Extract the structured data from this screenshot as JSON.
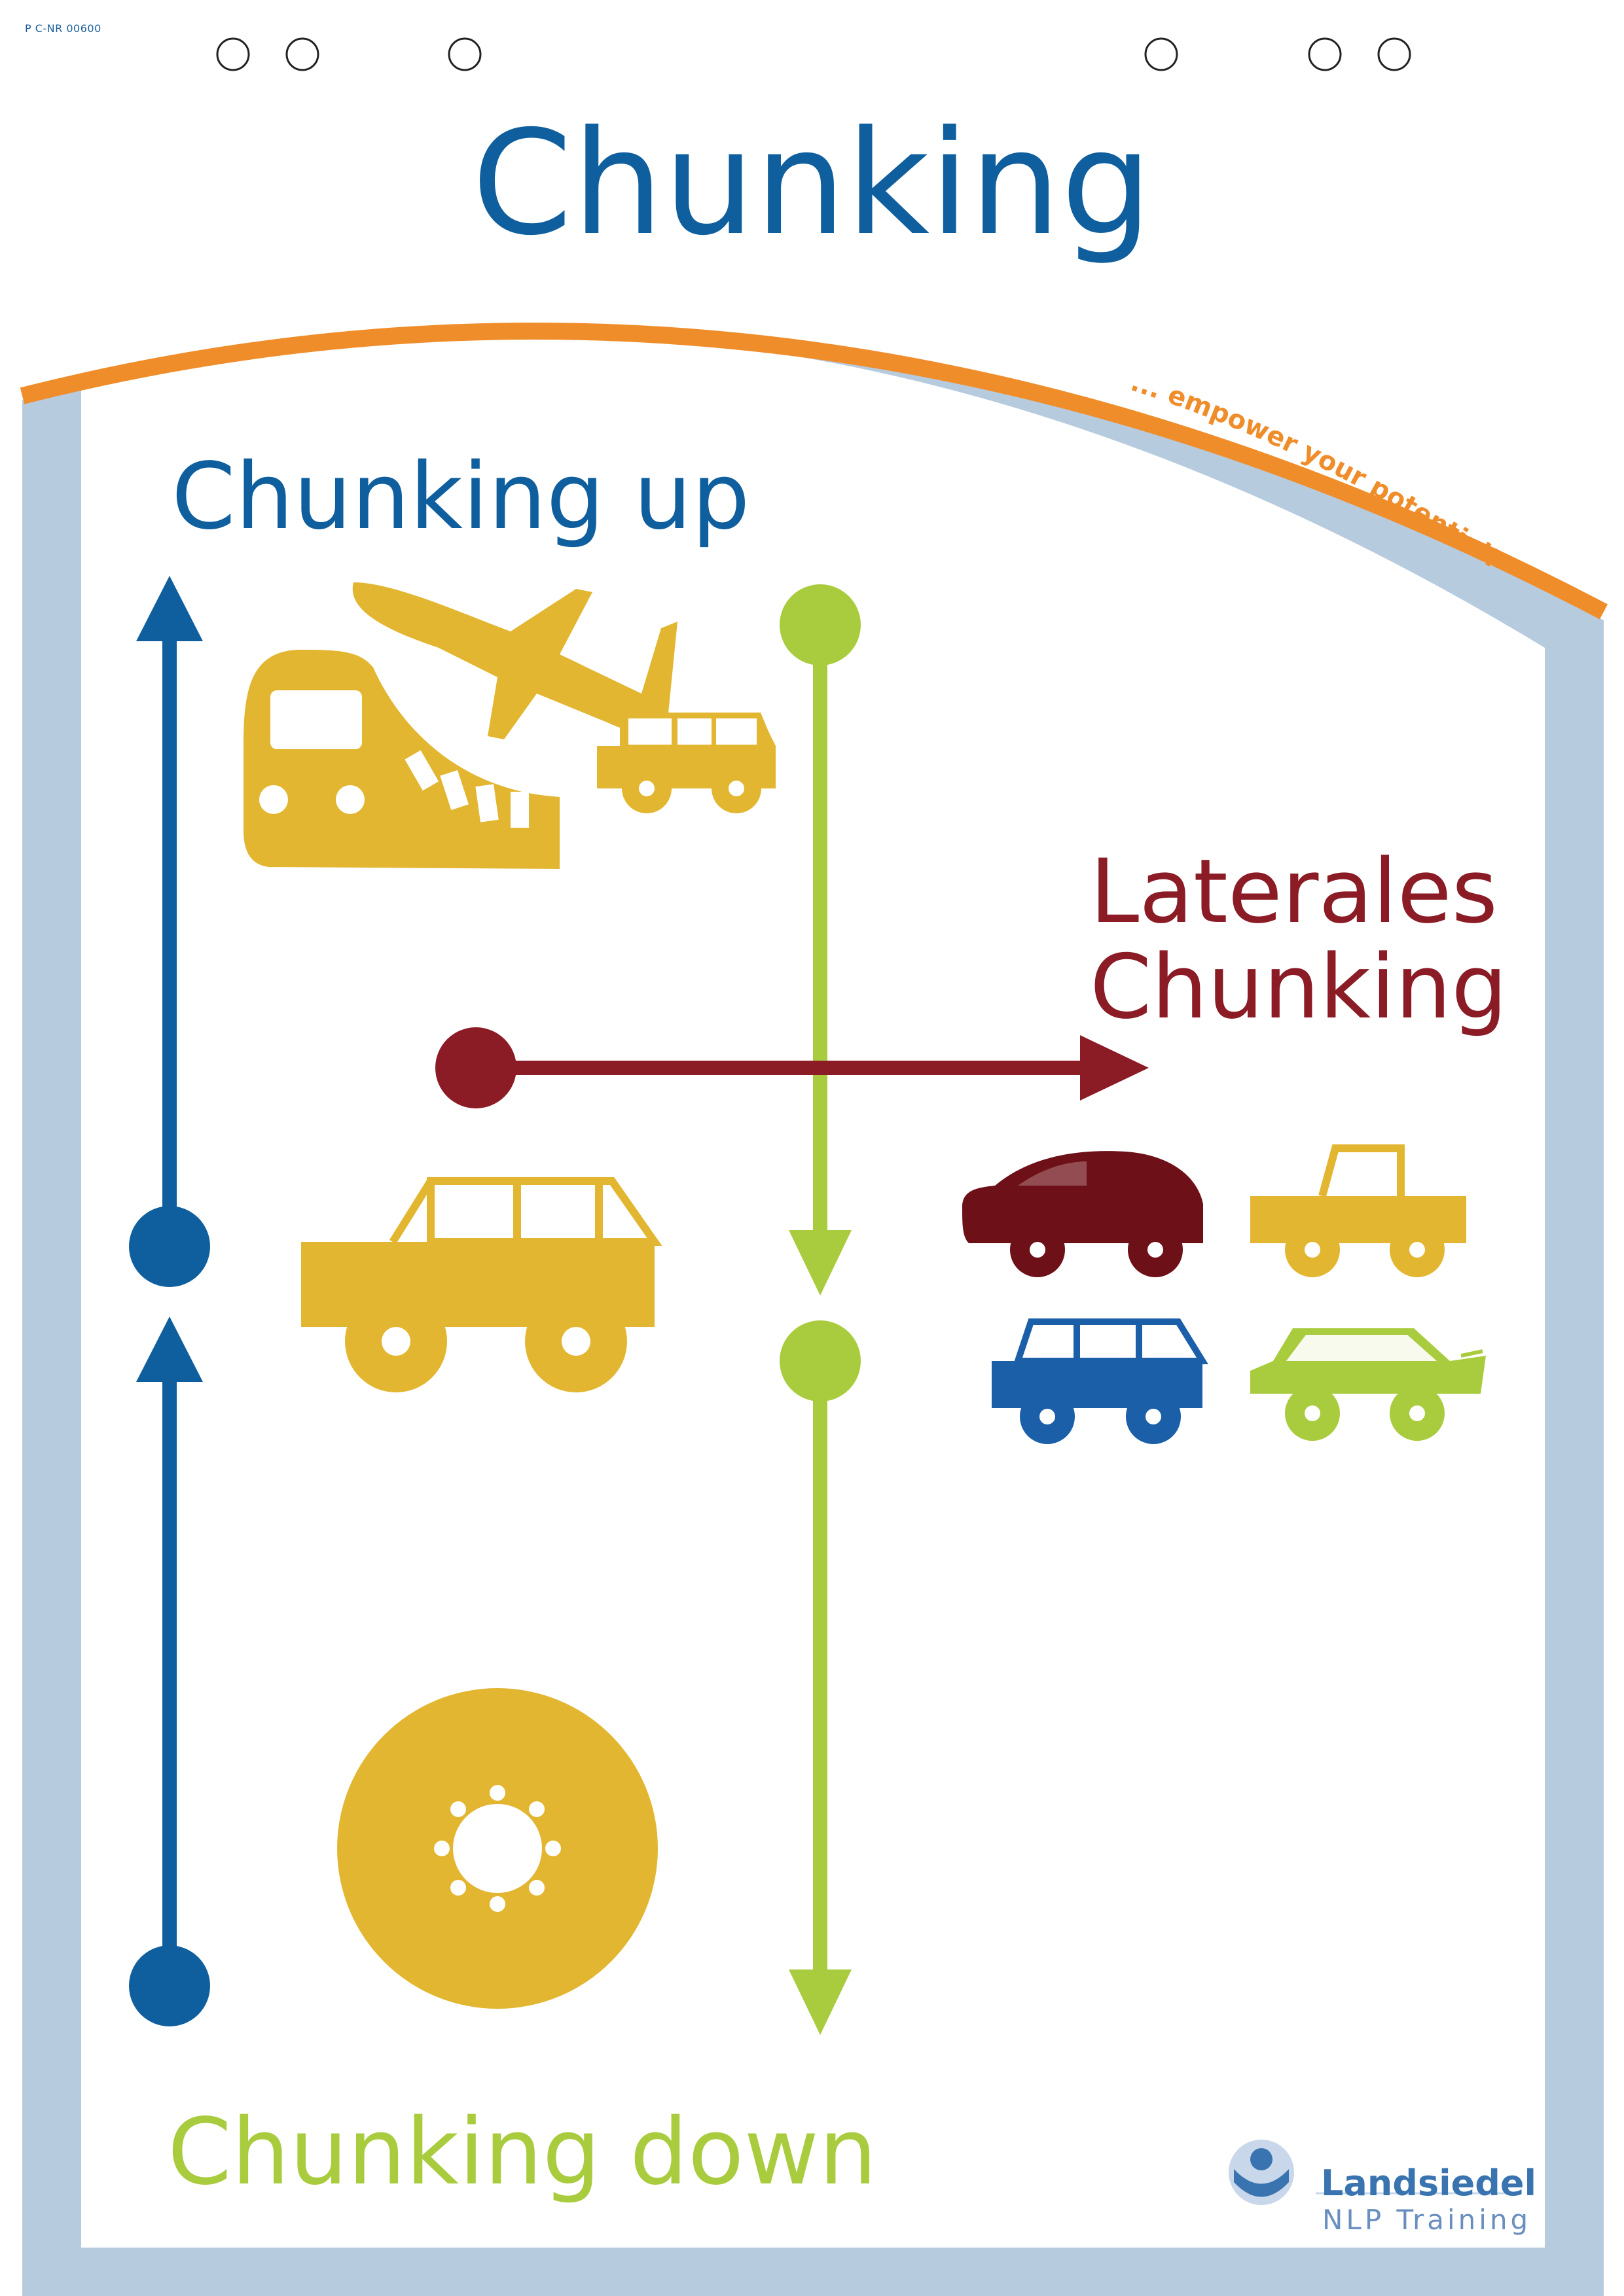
{
  "document": {
    "code": "P C-NR 00600",
    "title": "Chunking",
    "tagline": "... empower your potential!"
  },
  "labels": {
    "chunking_up": "Chunking up",
    "lateral_line1": "Laterales",
    "lateral_line2": "Chunking",
    "chunking_down": "Chunking down"
  },
  "brand": {
    "name": "Landsiedel",
    "subtitle": "NLP Training"
  },
  "colors": {
    "blue": "#0f5f9e",
    "green": "#a9cc3e",
    "red": "#8b1b25",
    "yellow": "#e3b631",
    "orange": "#f08d2b",
    "frame": "#b7cbdf"
  },
  "icons": [
    "train-icon",
    "airplane-icon",
    "jeep-icon",
    "car-icon",
    "pickup-icon",
    "wheel-icon",
    "logo-icon"
  ]
}
